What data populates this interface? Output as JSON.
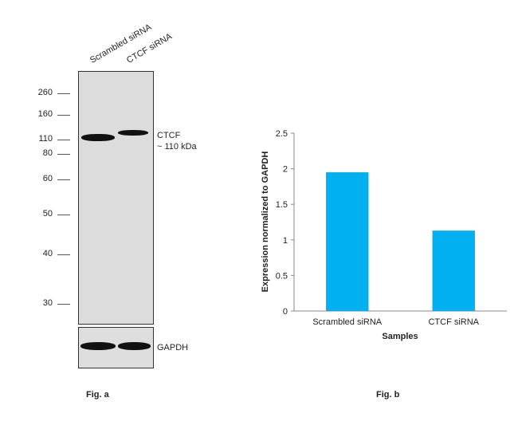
{
  "western_blot": {
    "lanes": [
      "Scrambled siRNA",
      "CTCF siRNA"
    ],
    "mw_markers": [
      "260",
      "160",
      "110",
      "80",
      "60",
      "50",
      "40",
      "30"
    ],
    "target_label": "CTCF",
    "target_size": "~ 110 kDa",
    "loading_control": "GAPDH",
    "figure_label": "Fig. a"
  },
  "chart_data": {
    "type": "bar",
    "categories": [
      "Scrambled siRNA",
      "CTCF siRNA"
    ],
    "values": [
      1.95,
      1.13
    ],
    "xlabel": "Samples",
    "ylabel": "Expression normalized to GAPDH",
    "ylim": [
      0,
      2.5
    ],
    "yticks": [
      "0",
      "0.5",
      "1",
      "1.5",
      "2",
      "2.5"
    ],
    "grid": false,
    "bar_color": "#00b0f0",
    "figure_label": "Fig. b"
  }
}
